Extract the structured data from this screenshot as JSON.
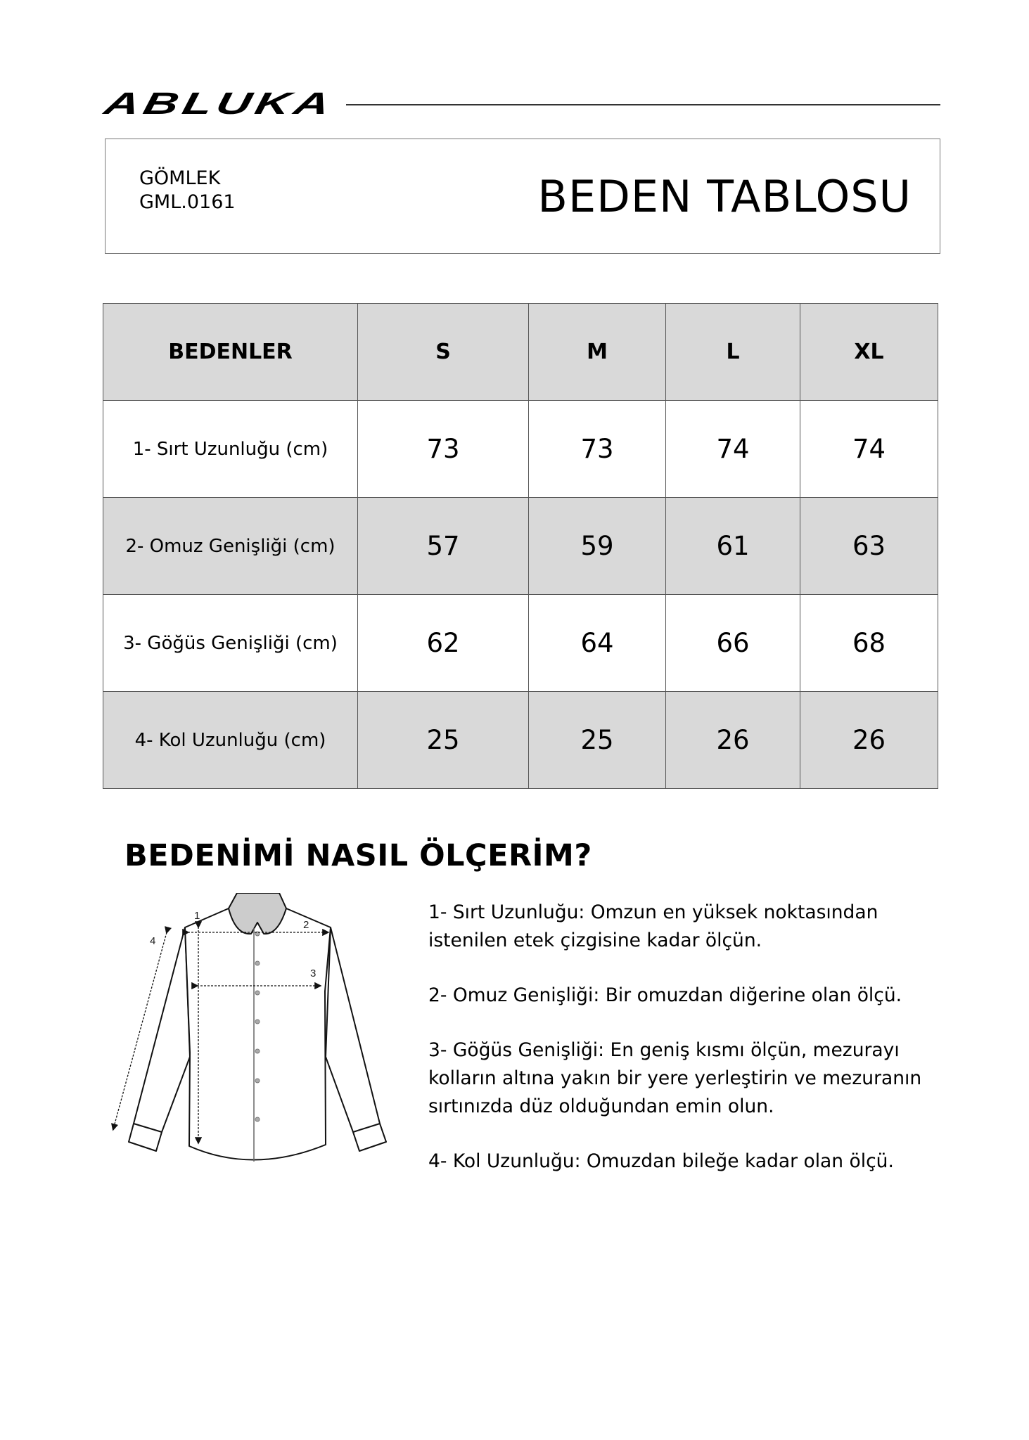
{
  "brand": {
    "logo": "ABLUKA"
  },
  "header": {
    "category": "GÖMLEK",
    "code": "GML.0161",
    "title": "BEDEN TABLOSU"
  },
  "table": {
    "headers": [
      "BEDENLER",
      "S",
      "M",
      "L",
      "XL"
    ],
    "rows": [
      {
        "label": "1- Sırt Uzunluğu (cm)",
        "values": [
          "73",
          "73",
          "74",
          "74"
        ]
      },
      {
        "label": "2- Omuz Genişliği (cm)",
        "values": [
          "57",
          "59",
          "61",
          "63"
        ]
      },
      {
        "label": "3- Göğüs Genişliği (cm)",
        "values": [
          "62",
          "64",
          "66",
          "68"
        ]
      },
      {
        "label": "4- Kol Uzunluğu (cm)",
        "values": [
          "25",
          "25",
          "26",
          "26"
        ]
      }
    ]
  },
  "guide": {
    "heading": "BEDENİMİ NASIL ÖLÇERİM?",
    "diagram_labels": [
      "1",
      "2",
      "3",
      "4"
    ],
    "items": [
      "1- Sırt Uzunluğu: Omzun en yüksek noktasından istenilen etek çizgisine kadar ölçün.",
      "2- Omuz Genişliği: Bir omuzdan diğerine olan ölçü.",
      "3- Göğüs Genişliği: En geniş kısmı ölçün, mezurayı kolların altına yakın bir yere yerleştirin ve mezuranın sırtınızda düz olduğundan emin olun.",
      "4- Kol Uzunluğu: Omuzdan bileğe kadar olan ölçü."
    ]
  },
  "colors": {
    "shaded_row": "#d9d9d9",
    "border": "#555555"
  }
}
